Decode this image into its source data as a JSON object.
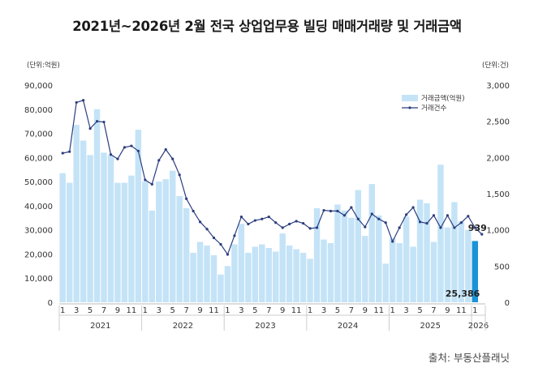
{
  "title": "2021년~2026년 2월 전국 상업업무용 빌딩 매매거래량 및 거래금액",
  "source": "출처: 부동산플래닛",
  "chart_data": {
    "type": "bar",
    "left_unit": "(단위:억원)",
    "right_unit": "(단위:건)",
    "left_ticks": [
      "0",
      "10,000",
      "20,000",
      "30,000",
      "40,000",
      "50,000",
      "60,000",
      "70,000",
      "80,000",
      "90,000"
    ],
    "right_ticks": [
      "0",
      "500",
      "1,000",
      "1,500",
      "2,000",
      "2,500",
      "3,000"
    ],
    "ylim_left": [
      0,
      90000
    ],
    "ylim_right": [
      0,
      3000
    ],
    "month_labels": [
      "1",
      "",
      "3",
      "",
      "5",
      "",
      "7",
      "",
      "9",
      "",
      "11",
      "",
      "1",
      "",
      "3",
      "",
      "5",
      "",
      "7",
      "",
      "9",
      "",
      "11",
      "",
      "1",
      "",
      "3",
      "",
      "5",
      "",
      "7",
      "",
      "9",
      "",
      "11",
      "",
      "1",
      "",
      "3",
      "",
      "5",
      "",
      "7",
      "",
      "9",
      "",
      "11",
      "",
      "1",
      "",
      "3",
      "",
      "5",
      "",
      "7",
      "",
      "9",
      "",
      "11",
      "",
      "1",
      ""
    ],
    "year_labels": [
      "2021",
      "2022",
      "2023",
      "2024",
      "2025",
      "2026"
    ],
    "months_per_year": [
      12,
      12,
      12,
      12,
      12,
      2
    ],
    "legend": [
      "거래금액(억원)",
      "거래건수"
    ],
    "legend_position": "top-right",
    "bar_color": "#c4e3f7",
    "highlight_bar_color": "#1b93d9",
    "line_color": "#2b3d7e",
    "series": [
      {
        "name": "거래금액(억원)",
        "axis": "left",
        "values": [
          53500,
          49500,
          73500,
          67000,
          61000,
          80000,
          62000,
          61000,
          49500,
          49500,
          52500,
          71500,
          50000,
          38000,
          50000,
          51000,
          54500,
          44000,
          39000,
          20500,
          25000,
          23500,
          19500,
          11500,
          15000,
          24000,
          32500,
          20500,
          23000,
          24000,
          22500,
          21000,
          28500,
          23500,
          22000,
          20500,
          18000,
          39000,
          26000,
          24500,
          40500,
          38000,
          35000,
          46500,
          27500,
          49000,
          36000,
          16000,
          26500,
          24500,
          35500,
          23000,
          42500,
          41000,
          25000,
          57000,
          31000,
          41500,
          33500,
          30000,
          25386,
          0
        ]
      },
      {
        "name": "거래건수",
        "axis": "right",
        "values": [
          2060,
          2080,
          2760,
          2790,
          2400,
          2500,
          2490,
          2040,
          1980,
          2140,
          2160,
          2090,
          1690,
          1630,
          1960,
          2110,
          1980,
          1760,
          1430,
          1260,
          1110,
          1010,
          890,
          800,
          660,
          920,
          1180,
          1080,
          1130,
          1150,
          1180,
          1100,
          1030,
          1080,
          1120,
          1090,
          1020,
          1030,
          1270,
          1260,
          1260,
          1200,
          1310,
          1150,
          1040,
          1220,
          1150,
          1100,
          840,
          1030,
          1210,
          1310,
          1110,
          1090,
          1200,
          1030,
          1200,
          1030,
          1100,
          1190,
          1030,
          939
        ]
      }
    ],
    "annotations": [
      "939",
      "25,386"
    ]
  }
}
